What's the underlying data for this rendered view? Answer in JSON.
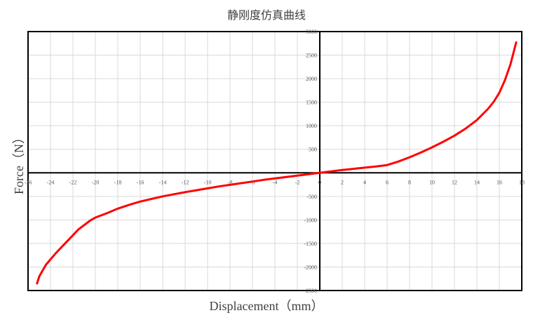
{
  "chart_data": {
    "type": "line",
    "title": "静刚度仿真曲线",
    "xlabel": "Displacement（mm）",
    "ylabel": "Force（N）",
    "xlim": [
      -26,
      18
    ],
    "ylim": [
      -2500,
      3000
    ],
    "x_ticks": [
      -26,
      -24,
      -22,
      -20,
      -18,
      -16,
      -14,
      -12,
      -10,
      -8,
      -6,
      -4,
      -2,
      0,
      2,
      4,
      6,
      8,
      10,
      12,
      14,
      16,
      18
    ],
    "y_ticks": [
      -2500,
      -2000,
      -1500,
      -1000,
      -500,
      500,
      1000,
      1500,
      2000,
      2500,
      3000
    ],
    "grid": true,
    "legend": "none",
    "series": [
      {
        "color": "#ff0000",
        "x": [
          -25.2,
          -25,
          -24.4,
          -23.5,
          -22.5,
          -21.5,
          -20.5,
          -20,
          -19,
          -18,
          -17,
          -16,
          -15,
          -14,
          -13,
          -12,
          -11,
          -10,
          -9,
          -8,
          -7,
          -6,
          -5,
          -4,
          -3,
          -2,
          -1,
          0,
          1,
          2,
          3,
          4,
          5,
          6,
          7,
          8,
          9,
          10,
          11,
          12,
          13,
          14,
          15,
          15.5,
          16,
          16.5,
          17,
          17.5
        ],
        "y": [
          -2350,
          -2200,
          -1950,
          -1700,
          -1450,
          -1200,
          -1020,
          -950,
          -860,
          -760,
          -680,
          -610,
          -555,
          -500,
          -455,
          -410,
          -370,
          -330,
          -290,
          -255,
          -220,
          -185,
          -150,
          -120,
          -90,
          -60,
          -30,
          0,
          30,
          60,
          85,
          110,
          135,
          165,
          240,
          330,
          430,
          540,
          660,
          790,
          940,
          1120,
          1360,
          1510,
          1700,
          1970,
          2310,
          2770
        ]
      }
    ]
  }
}
